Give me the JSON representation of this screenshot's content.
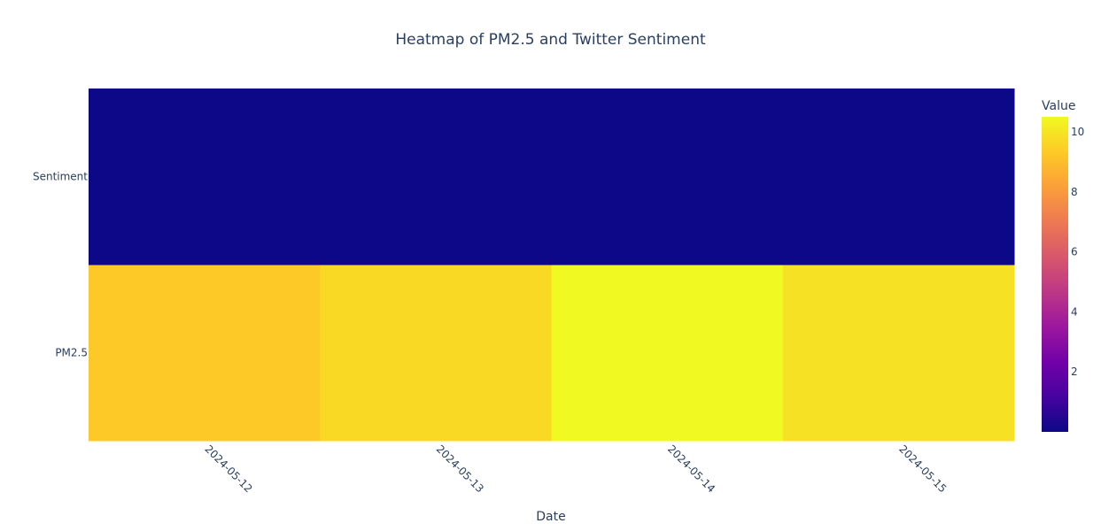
{
  "chart_data": {
    "type": "heatmap",
    "title": "Heatmap of PM2.5 and Twitter Sentiment",
    "xlabel": "Date",
    "ylabel": "",
    "x": [
      "2024-05-12",
      "2024-05-13",
      "2024-05-14",
      "2024-05-15"
    ],
    "y": [
      "PM2.5",
      "Sentiment"
    ],
    "z": [
      [
        9.3,
        9.7,
        10.5,
        9.9
      ],
      [
        0.0,
        0.0,
        0.0,
        0.0
      ]
    ],
    "colorscale": "Plasma",
    "colorscale_stops": [
      "#0d0887",
      "#46039f",
      "#7201a8",
      "#9c179e",
      "#bd3786",
      "#d8576b",
      "#ed7953",
      "#fb9f3a",
      "#fdca26",
      "#f0f921"
    ],
    "zmin": 0,
    "zmax": 10.5,
    "colorbar": {
      "title": "Value",
      "tickvals": [
        2,
        4,
        6,
        8,
        10
      ],
      "ticktext": [
        "2",
        "4",
        "6",
        "8",
        "10"
      ]
    },
    "grid": false,
    "legend": "none"
  }
}
